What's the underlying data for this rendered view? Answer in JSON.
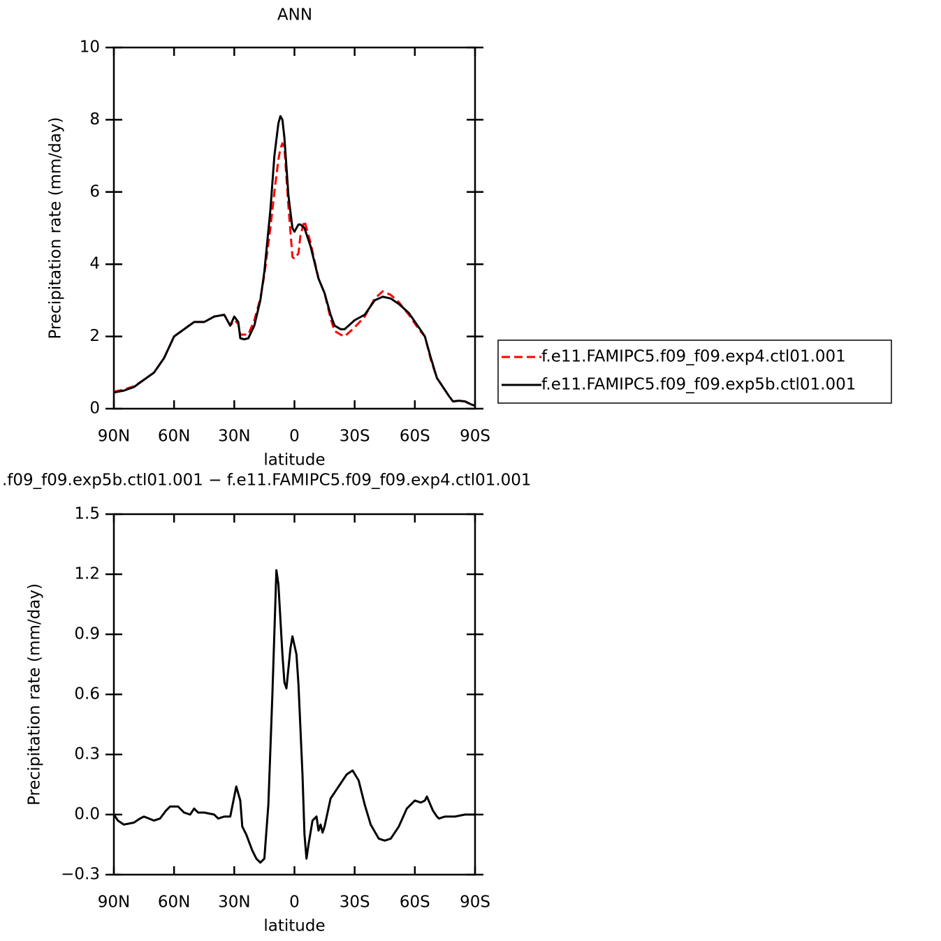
{
  "chart_data": [
    {
      "type": "line",
      "title": "ANN",
      "xlabel": "latitude",
      "ylabel": "Precipitation rate (mm/day)",
      "x": [
        90,
        85,
        80,
        75,
        70,
        65,
        60,
        55,
        50,
        45,
        40,
        35,
        32,
        30,
        28,
        27,
        25,
        23,
        20,
        17,
        15,
        12,
        10,
        8,
        7,
        6,
        5,
        3,
        1,
        0,
        -2,
        -3,
        -5,
        -8,
        -12,
        -15,
        -18,
        -20,
        -23,
        -25,
        -30,
        -35,
        -40,
        -44,
        -48,
        -52,
        -57,
        -62,
        -65,
        -68,
        -71,
        -74,
        -77,
        -79,
        -82,
        -85,
        -88,
        -90
      ],
      "series": [
        {
          "name": "f.e11.FAMIPC5.f09_f09.exp4.ctl01.001",
          "color": "#ff0000",
          "dashed": true,
          "values": [
            0.47,
            0.53,
            0.62,
            0.8,
            1.0,
            1.4,
            2.0,
            2.2,
            2.4,
            2.4,
            2.55,
            2.6,
            2.3,
            2.45,
            2.35,
            2.05,
            2.05,
            2.05,
            2.45,
            3.05,
            3.7,
            5.0,
            6.0,
            6.9,
            7.2,
            7.35,
            7.2,
            5.6,
            4.2,
            4.15,
            4.3,
            4.8,
            5.2,
            4.6,
            3.6,
            3.2,
            2.5,
            2.15,
            2.05,
            2.0,
            2.25,
            2.55,
            3.05,
            3.25,
            3.15,
            2.95,
            2.6,
            2.2,
            2.0,
            1.35,
            0.85,
            0.6,
            0.35,
            0.2,
            0.22,
            0.2,
            0.12,
            0.08
          ]
        },
        {
          "name": "f.e11.FAMIPC5.f09_f09.exp5b.ctl01.001",
          "color": "#000000",
          "dashed": false,
          "values": [
            0.45,
            0.5,
            0.6,
            0.8,
            1.0,
            1.4,
            2.0,
            2.2,
            2.4,
            2.4,
            2.55,
            2.6,
            2.3,
            2.55,
            2.4,
            1.95,
            1.92,
            1.95,
            2.3,
            3.0,
            3.8,
            5.5,
            7.0,
            7.9,
            8.1,
            8.0,
            7.5,
            5.9,
            5.0,
            4.9,
            5.1,
            5.1,
            5.0,
            4.5,
            3.6,
            3.2,
            2.6,
            2.3,
            2.2,
            2.2,
            2.45,
            2.6,
            3.0,
            3.1,
            3.05,
            2.9,
            2.65,
            2.25,
            2.0,
            1.4,
            0.85,
            0.6,
            0.35,
            0.2,
            0.22,
            0.2,
            0.12,
            0.08
          ]
        }
      ],
      "xlim": [
        90,
        -90
      ],
      "xticks": [
        {
          "value": 90,
          "label": "90N"
        },
        {
          "value": 60,
          "label": "60N"
        },
        {
          "value": 30,
          "label": "30N"
        },
        0,
        {
          "value": -30,
          "label": "30S"
        },
        {
          "value": -60,
          "label": "60S"
        },
        {
          "value": -90,
          "label": "90S"
        }
      ],
      "ylim": [
        0,
        10
      ],
      "yticks": [
        0,
        2,
        4,
        6,
        8,
        10
      ],
      "legend": "right"
    },
    {
      "type": "line",
      "title": ".f09_f09.exp5b.ctl01.001 − f.e11.FAMIPC5.f09_f09.exp4.ctl01.001",
      "xlabel": "latitude",
      "ylabel": "Precipitation rate (mm/day)",
      "x": [
        90,
        88,
        85,
        80,
        77,
        75,
        70,
        67,
        64,
        62,
        58,
        55,
        52,
        50,
        48,
        45,
        40,
        38,
        35,
        32,
        29,
        27,
        26,
        24,
        21,
        19,
        17,
        15,
        13,
        11,
        9,
        8,
        6,
        5,
        4,
        2,
        1,
        -1,
        -2,
        -4,
        -5,
        -6,
        -7,
        -9,
        -11,
        -12,
        -13,
        -14,
        -15,
        -18,
        -22,
        -26,
        -29,
        -32,
        -35,
        -38,
        -42,
        -45,
        -48,
        -52,
        -56,
        -60,
        -63,
        -65,
        -66,
        -69,
        -71,
        -72,
        -75,
        -80,
        -85,
        -90
      ],
      "values": [
        0.0,
        -0.03,
        -0.05,
        -0.04,
        -0.02,
        -0.01,
        -0.03,
        -0.02,
        0.02,
        0.04,
        0.04,
        0.01,
        0.0,
        0.03,
        0.01,
        0.01,
        0.0,
        -0.02,
        -0.01,
        -0.01,
        0.14,
        0.07,
        -0.06,
        -0.1,
        -0.18,
        -0.22,
        -0.24,
        -0.22,
        0.05,
        0.6,
        1.22,
        1.15,
        0.8,
        0.66,
        0.63,
        0.83,
        0.89,
        0.8,
        0.65,
        0.2,
        -0.1,
        -0.22,
        -0.15,
        -0.03,
        -0.01,
        -0.08,
        -0.05,
        -0.09,
        -0.06,
        0.08,
        0.14,
        0.2,
        0.22,
        0.17,
        0.05,
        -0.05,
        -0.12,
        -0.13,
        -0.12,
        -0.06,
        0.03,
        0.07,
        0.06,
        0.07,
        0.09,
        0.02,
        -0.01,
        -0.02,
        -0.01,
        -0.01,
        0.0,
        0.0
      ],
      "color": "#000000",
      "xlim": [
        90,
        -90
      ],
      "xticks": [
        {
          "value": 90,
          "label": "90N"
        },
        {
          "value": 60,
          "label": "60N"
        },
        {
          "value": 30,
          "label": "30N"
        },
        0,
        {
          "value": -30,
          "label": "30S"
        },
        {
          "value": -60,
          "label": "60S"
        },
        {
          "value": -90,
          "label": "90S"
        }
      ],
      "ylim": [
        -0.3,
        1.5
      ],
      "yticks": [
        {
          "value": -0.3,
          "label": "−0.3"
        },
        {
          "value": 0,
          "label": "0.0"
        },
        0.3,
        0.6,
        0.9,
        1.2,
        1.5
      ]
    }
  ]
}
